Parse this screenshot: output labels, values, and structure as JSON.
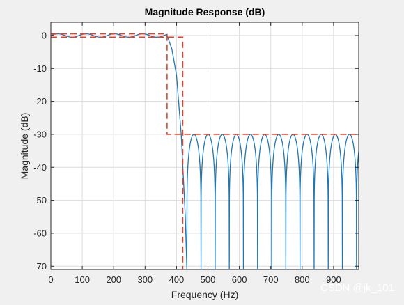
{
  "chart_data": {
    "type": "line",
    "title": "Magnitude Response (dB)",
    "xlabel": "Frequency (Hz)",
    "ylabel": "Magnitude (dB)",
    "xlim": [
      0,
      980
    ],
    "ylim": [
      -71,
      4
    ],
    "x_ticks": [
      0,
      100,
      200,
      300,
      400,
      500,
      600,
      700,
      800,
      900
    ],
    "x_tick_labels": [
      "0",
      "100",
      "200",
      "300",
      "400",
      "500",
      "600",
      "700",
      "800",
      "900"
    ],
    "y_ticks": [
      0,
      -10,
      -20,
      -30,
      -40,
      -50,
      -60,
      -70
    ],
    "y_tick_labels": [
      "0",
      "-10",
      "-20",
      "-30",
      "-40",
      "-50",
      "-60",
      "-70"
    ],
    "grid": true,
    "legend": "none",
    "colors": {
      "response": "#1f77b4",
      "mask": "#e0452c",
      "grid": "#dcdcdc",
      "axes_bg": "#ffffff"
    },
    "series": [
      {
        "style": "solid",
        "passband": {
          "f_end": 370,
          "ripple_db": 0.5,
          "ripple_period_hz": 90
        },
        "transition": [
          [
            370,
            0
          ],
          [
            385,
            -4
          ],
          [
            400,
            -12
          ],
          [
            415,
            -30
          ],
          [
            428,
            -55
          ],
          [
            433,
            -71
          ]
        ],
        "stopband": {
          "start_hz": 433,
          "peak_db": -30,
          "null_db": -71,
          "lobe_width_hz": 45,
          "end_hz": 980
        }
      },
      {
        "style": "dashed",
        "description_segments": [
          [
            [
              0,
              0.5
            ],
            [
              370,
              0.5
            ],
            [
              370,
              -30
            ],
            [
              980,
              -30
            ]
          ],
          [
            [
              0,
              -0.5
            ],
            [
              420,
              -0.5
            ],
            [
              420,
              -71
            ]
          ]
        ]
      }
    ]
  },
  "watermark": "CSDN @jk_101"
}
